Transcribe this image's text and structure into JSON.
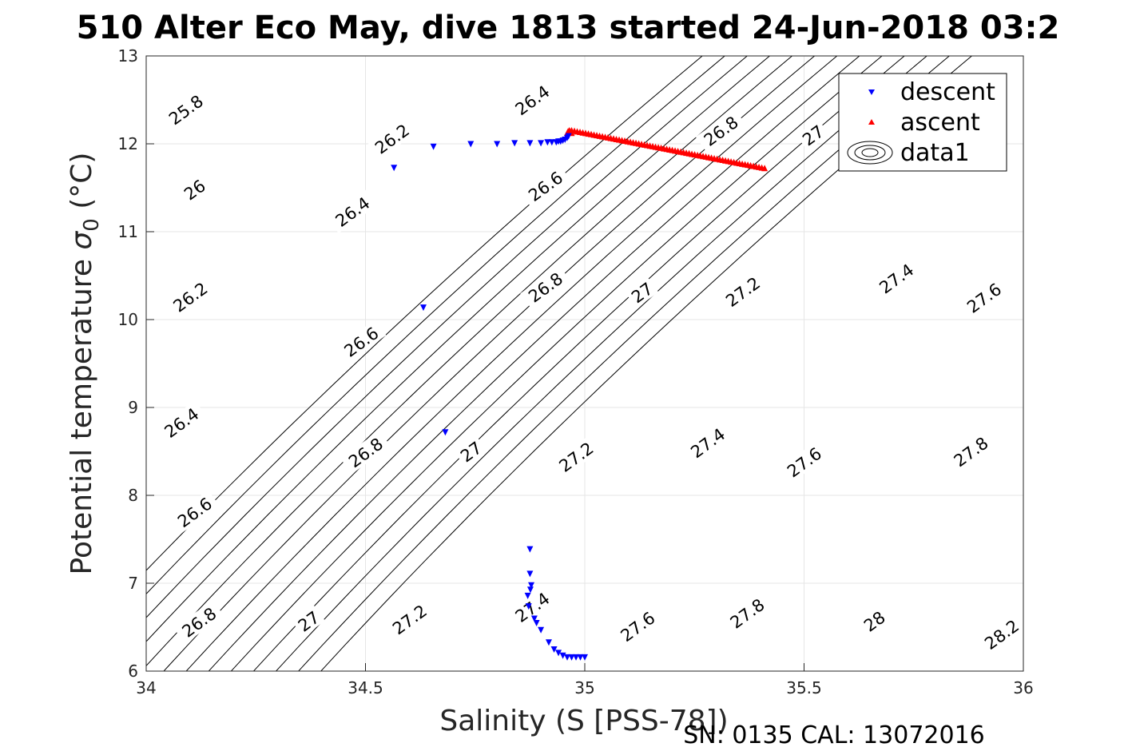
{
  "title": "510 Alter Eco May, dive 1813 started 24-Jun-2018 03:2",
  "footer": "SN: 0135  CAL: 13072016",
  "colors": {
    "descent": "#0000ff",
    "ascent": "#ff0000",
    "contour": "#000000",
    "grid": "#e6e6e6",
    "axis": "#262626"
  },
  "chart_data": {
    "type": "scatter",
    "title": "510 Alter Eco May, dive 1813 started 24-Jun-2018 03:2",
    "xlabel": "Salinity (S [PSS-78])",
    "ylabel": "Potential temperature",
    "ylabel_symbol": "σ",
    "ylabel_subscript": "0",
    "ylabel_unit": "(°C)",
    "xlim": [
      34,
      36
    ],
    "ylim": [
      6,
      13
    ],
    "xticks": [
      "34",
      "34.5",
      "35",
      "35.5",
      "36"
    ],
    "xtick_values": [
      34,
      34.5,
      35,
      35.5,
      36
    ],
    "yticks": [
      "6",
      "7",
      "8",
      "9",
      "10",
      "11",
      "12",
      "13"
    ],
    "ytick_values": [
      6,
      7,
      8,
      9,
      10,
      11,
      12,
      13
    ],
    "grid": true,
    "legend": {
      "position": "top-right",
      "entries": [
        "descent",
        "ascent",
        "data1"
      ]
    },
    "series": [
      {
        "name": "descent",
        "marker": "triangle-down",
        "color": "#0000ff",
        "points": [
          [
            34.565,
            11.73
          ],
          [
            34.655,
            11.97
          ],
          [
            34.74,
            12.0
          ],
          [
            34.8,
            12.0
          ],
          [
            34.84,
            12.01
          ],
          [
            34.875,
            12.01
          ],
          [
            34.9,
            12.01
          ],
          [
            34.915,
            12.02
          ],
          [
            34.925,
            12.02
          ],
          [
            34.935,
            12.02
          ],
          [
            34.94,
            12.03
          ],
          [
            34.945,
            12.03
          ],
          [
            34.95,
            12.04
          ],
          [
            34.955,
            12.05
          ],
          [
            34.96,
            12.07
          ],
          [
            34.963,
            12.09
          ],
          [
            34.632,
            10.14
          ],
          [
            34.682,
            8.72
          ],
          [
            34.875,
            7.39
          ],
          [
            34.875,
            7.11
          ],
          [
            34.878,
            6.98
          ],
          [
            34.876,
            6.93
          ],
          [
            34.87,
            6.86
          ],
          [
            34.872,
            6.74
          ],
          [
            34.885,
            6.6
          ],
          [
            34.89,
            6.55
          ],
          [
            34.9,
            6.47
          ],
          [
            34.918,
            6.33
          ],
          [
            34.93,
            6.25
          ],
          [
            34.94,
            6.21
          ],
          [
            34.95,
            6.18
          ],
          [
            34.96,
            6.16
          ],
          [
            34.97,
            6.16
          ],
          [
            34.98,
            6.16
          ],
          [
            34.99,
            6.16
          ],
          [
            35.0,
            6.16
          ]
        ]
      },
      {
        "name": "ascent",
        "marker": "triangle-up",
        "color": "#ff0000",
        "points": [
          [
            34.96,
            12.12
          ],
          [
            34.962,
            12.14
          ],
          [
            34.965,
            12.15
          ],
          [
            34.97,
            12.12
          ]
        ],
        "trend_line": {
          "from": [
            34.97,
            12.15
          ],
          "to": [
            35.41,
            11.72
          ],
          "count": 70
        }
      },
      {
        "name": "data1",
        "type": "contour",
        "description": "density anomaly contours",
        "levels": [
          25.8,
          26.0,
          26.2,
          26.4,
          26.6,
          26.8,
          27.0,
          27.2,
          27.4,
          27.6,
          27.8,
          28.0,
          28.2
        ],
        "labels": [
          {
            "text": "25.8",
            "x": 34.09,
            "y": 12.39
          },
          {
            "text": "26",
            "x": 34.11,
            "y": 11.48
          },
          {
            "text": "26.2",
            "x": 34.56,
            "y": 12.06
          },
          {
            "text": "26.2",
            "x": 34.1,
            "y": 10.26
          },
          {
            "text": "26.4",
            "x": 34.88,
            "y": 12.5
          },
          {
            "text": "26.4",
            "x": 34.47,
            "y": 11.23
          },
          {
            "text": "26.4",
            "x": 34.08,
            "y": 8.83
          },
          {
            "text": "26.6",
            "x": 34.91,
            "y": 11.52
          },
          {
            "text": "26.6",
            "x": 34.49,
            "y": 9.75
          },
          {
            "text": "26.6",
            "x": 34.11,
            "y": 7.81
          },
          {
            "text": "26.8",
            "x": 35.31,
            "y": 12.15
          },
          {
            "text": "26.8",
            "x": 34.91,
            "y": 10.37
          },
          {
            "text": "26.8",
            "x": 34.5,
            "y": 8.49
          },
          {
            "text": "26.8",
            "x": 34.12,
            "y": 6.56
          },
          {
            "text": "27",
            "x": 35.52,
            "y": 12.1
          },
          {
            "text": "27",
            "x": 35.13,
            "y": 10.31
          },
          {
            "text": "27",
            "x": 34.74,
            "y": 8.5
          },
          {
            "text": "27",
            "x": 34.37,
            "y": 6.57
          },
          {
            "text": "27.2",
            "x": 35.36,
            "y": 10.32
          },
          {
            "text": "27.2",
            "x": 34.98,
            "y": 8.44
          },
          {
            "text": "27.2",
            "x": 34.6,
            "y": 6.59
          },
          {
            "text": "27.4",
            "x": 35.71,
            "y": 10.47
          },
          {
            "text": "27.4",
            "x": 35.28,
            "y": 8.6
          },
          {
            "text": "27.4",
            "x": 34.88,
            "y": 6.73
          },
          {
            "text": "27.6",
            "x": 35.91,
            "y": 10.25
          },
          {
            "text": "27.6",
            "x": 35.5,
            "y": 8.38
          },
          {
            "text": "27.6",
            "x": 35.12,
            "y": 6.51
          },
          {
            "text": "27.8",
            "x": 35.88,
            "y": 8.5
          },
          {
            "text": "27.8",
            "x": 35.37,
            "y": 6.66
          },
          {
            "text": "28",
            "x": 35.66,
            "y": 6.57
          },
          {
            "text": "28.2",
            "x": 35.95,
            "y": 6.42
          }
        ]
      }
    ]
  }
}
